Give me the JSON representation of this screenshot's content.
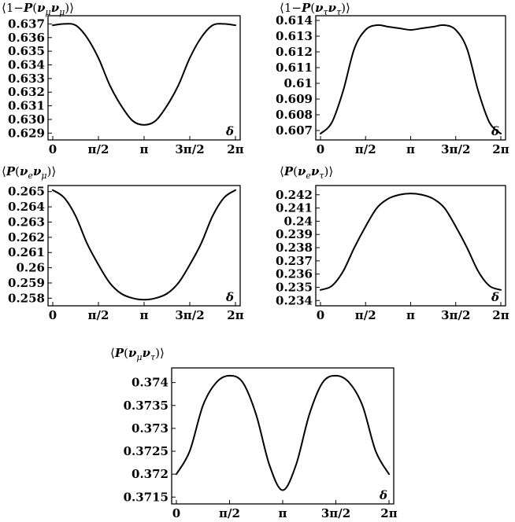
{
  "chart_data": [
    {
      "type": "line",
      "title": "⟨1−P(ν_μν_μ)⟩",
      "xlabel": "δ",
      "x_ticks": [
        "0",
        "π/2",
        "π",
        "3π/2",
        "2π"
      ],
      "xlim": [
        0,
        6.2832
      ],
      "y_ticks": [
        "0.637",
        "0.636",
        "0.635",
        "0.634",
        "0.633",
        "0.632",
        "0.631",
        "0.630",
        "0.629"
      ],
      "y_tick_values": [
        0.637,
        0.636,
        0.635,
        0.634,
        0.633,
        0.632,
        0.631,
        0.63,
        0.629
      ],
      "ylim": [
        0.6285,
        0.6376
      ],
      "x": [
        0,
        0.3927,
        0.7854,
        1.1781,
        1.5708,
        1.9635,
        2.3562,
        2.7489,
        3.1416,
        3.5343,
        3.927,
        4.3197,
        4.7124,
        5.1051,
        5.4978,
        5.8905,
        6.2832
      ],
      "y": [
        0.6369,
        0.637,
        0.6369,
        0.636,
        0.6345,
        0.6325,
        0.631,
        0.6299,
        0.6296,
        0.6299,
        0.631,
        0.6325,
        0.6345,
        0.636,
        0.6369,
        0.637,
        0.6369
      ]
    },
    {
      "type": "line",
      "title": "⟨1−P(ν_τν_τ)⟩",
      "xlabel": "δ",
      "x_ticks": [
        "0",
        "π/2",
        "π",
        "3π/2",
        "2π"
      ],
      "xlim": [
        0,
        6.2832
      ],
      "y_ticks": [
        "0.614",
        "0.613",
        "0.612",
        "0.611",
        "0.61",
        "0.609",
        "0.608",
        "0.607"
      ],
      "y_tick_values": [
        0.614,
        0.613,
        0.612,
        0.611,
        0.61,
        0.609,
        0.608,
        0.607
      ],
      "ylim": [
        0.6064,
        0.6143
      ],
      "x": [
        0,
        0.3927,
        0.7854,
        1.1781,
        1.5708,
        1.9635,
        2.3562,
        2.7489,
        3.1416,
        3.5343,
        3.927,
        4.3197,
        4.7124,
        5.1051,
        5.4978,
        5.8905,
        6.2832
      ],
      "y": [
        0.6068,
        0.6075,
        0.6095,
        0.6122,
        0.6134,
        0.6137,
        0.6136,
        0.6135,
        0.6134,
        0.6135,
        0.6136,
        0.6137,
        0.6134,
        0.6122,
        0.6095,
        0.6075,
        0.6068
      ]
    },
    {
      "type": "line",
      "title": "⟨P(ν_eν_μ)⟩",
      "xlabel": "δ",
      "x_ticks": [
        "0",
        "π/2",
        "π",
        "3π/2",
        "2π"
      ],
      "xlim": [
        0,
        6.2832
      ],
      "y_ticks": [
        "0.265",
        "0.264",
        "0.263",
        "0.262",
        "0.261",
        "0.26",
        "0.259",
        "0.258"
      ],
      "y_tick_values": [
        0.265,
        0.264,
        0.263,
        0.262,
        0.261,
        0.26,
        0.259,
        0.258
      ],
      "ylim": [
        0.2575,
        0.2654
      ],
      "x": [
        0,
        0.3927,
        0.7854,
        1.1781,
        1.5708,
        1.9635,
        2.3562,
        2.7489,
        3.1416,
        3.5343,
        3.927,
        4.3197,
        4.7124,
        5.1051,
        5.4978,
        5.8905,
        6.2832
      ],
      "y": [
        0.2651,
        0.2646,
        0.2634,
        0.2616,
        0.2602,
        0.259,
        0.2583,
        0.258,
        0.2579,
        0.258,
        0.2583,
        0.259,
        0.2602,
        0.2616,
        0.2634,
        0.2646,
        0.2651
      ]
    },
    {
      "type": "line",
      "title": "⟨P(ν_eν_τ)⟩",
      "xlabel": "δ",
      "x_ticks": [
        "0",
        "π/2",
        "π",
        "3π/2",
        "2π"
      ],
      "xlim": [
        0,
        6.2832
      ],
      "y_ticks": [
        "0.242",
        "0.241",
        "0.24",
        "0.239",
        "0.238",
        "0.237",
        "0.236",
        "0.235",
        "0.234"
      ],
      "y_tick_values": [
        0.242,
        0.241,
        0.24,
        0.239,
        0.238,
        0.237,
        0.236,
        0.235,
        0.234
      ],
      "ylim": [
        0.2336,
        0.2427
      ],
      "x": [
        0,
        0.3927,
        0.7854,
        1.1781,
        1.5708,
        1.9635,
        2.3562,
        2.7489,
        3.1416,
        3.5343,
        3.927,
        4.3197,
        4.7124,
        5.1051,
        5.4978,
        5.8905,
        6.2832
      ],
      "y": [
        0.2348,
        0.2351,
        0.2362,
        0.238,
        0.2396,
        0.241,
        0.2417,
        0.242,
        0.2421,
        0.242,
        0.2417,
        0.241,
        0.2396,
        0.238,
        0.2362,
        0.2351,
        0.2348
      ]
    },
    {
      "type": "line",
      "title": "⟨P(ν_μν_τ)⟩",
      "xlabel": "δ",
      "x_ticks": [
        "0",
        "π/2",
        "π",
        "3π/2",
        "2π"
      ],
      "xlim": [
        0,
        6.2832
      ],
      "y_ticks": [
        "0.374",
        "0.3735",
        "0.373",
        "0.3725",
        "0.372",
        "0.3715"
      ],
      "y_tick_values": [
        0.374,
        0.3735,
        0.373,
        0.3725,
        0.372,
        0.3715
      ],
      "ylim": [
        0.37135,
        0.37432
      ],
      "x": [
        0,
        0.3927,
        0.7854,
        1.1781,
        1.5708,
        1.9635,
        2.3562,
        2.7489,
        3.1416,
        3.5343,
        3.927,
        4.3197,
        4.7124,
        5.1051,
        5.4978,
        5.8905,
        6.2832
      ],
      "y": [
        0.372,
        0.3725,
        0.3735,
        0.374,
        0.37415,
        0.374,
        0.3733,
        0.3722,
        0.37165,
        0.3722,
        0.3733,
        0.374,
        0.37415,
        0.374,
        0.3735,
        0.3725,
        0.372
      ]
    }
  ]
}
